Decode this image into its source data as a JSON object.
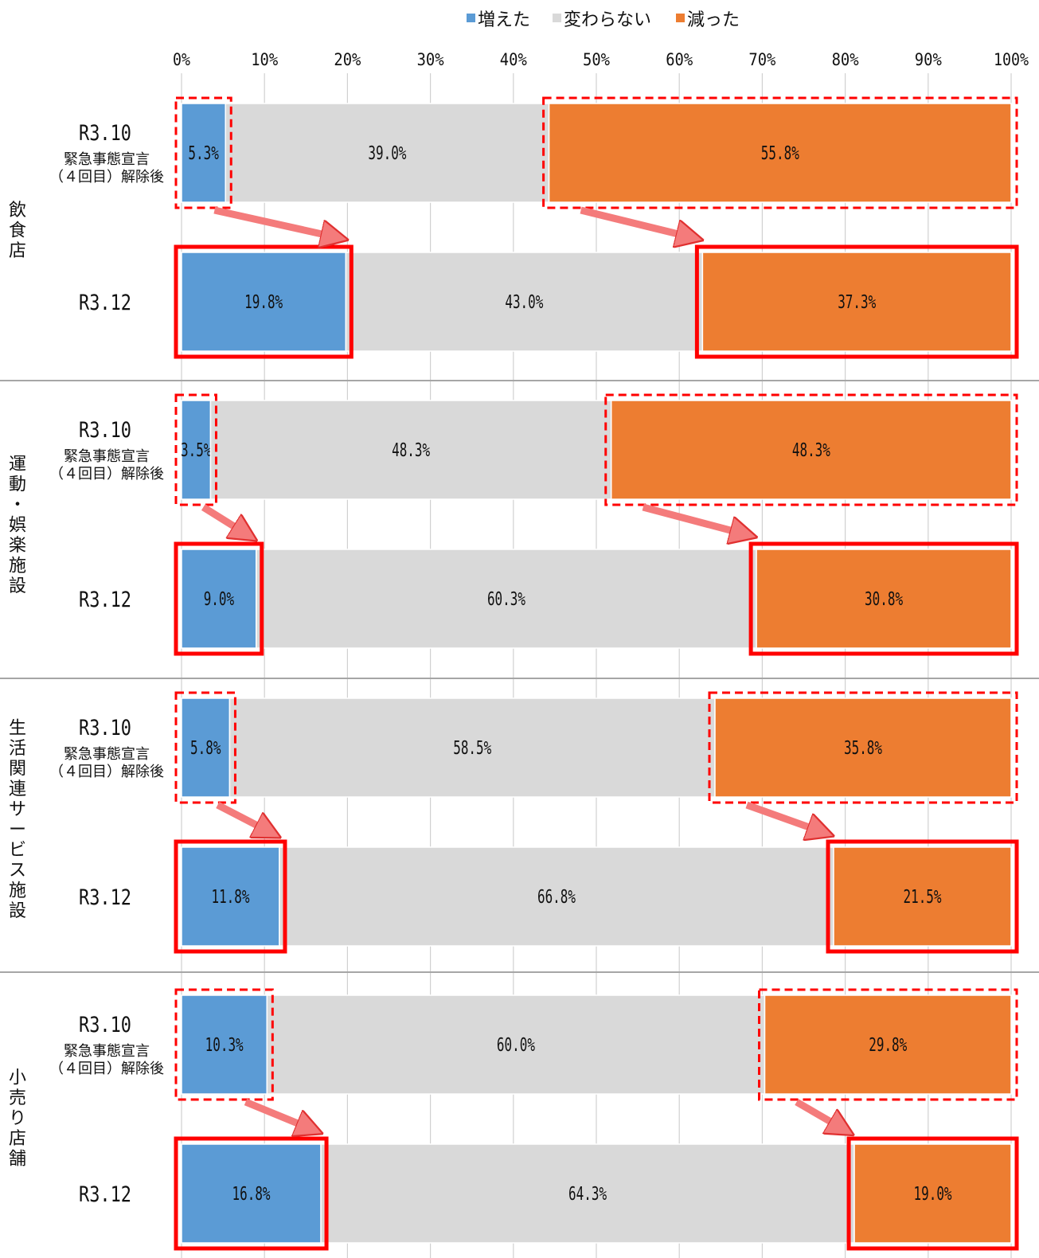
{
  "chart_data": {
    "type": "bar",
    "orientation": "horizontal",
    "stacked": "percent",
    "xlim": [
      0,
      100
    ],
    "x_ticks": [
      "0%",
      "10%",
      "20%",
      "30%",
      "40%",
      "50%",
      "60%",
      "70%",
      "80%",
      "90%",
      "100%"
    ],
    "legend": {
      "placement": "top-center",
      "items": [
        {
          "label": "増えた",
          "color": "#5b9bd5"
        },
        {
          "label": "変わらない",
          "color": "#d9d9d9"
        },
        {
          "label": "減った",
          "color": "#ed7d31"
        }
      ]
    },
    "highlight_color": "#ff0000",
    "groups": [
      {
        "name": "飲食店",
        "rows": [
          {
            "label": "R3.10",
            "sublabel": [
              "緊急事態宣言",
              "（４回目）解除後"
            ],
            "values": [
              5.3,
              39.0,
              55.8
            ],
            "value_labels": [
              "5.3%",
              "39.0%",
              "55.8%"
            ]
          },
          {
            "label": "R3.12",
            "sublabel": [],
            "values": [
              19.8,
              43.0,
              37.3
            ],
            "value_labels": [
              "19.8%",
              "43.0%",
              "37.3%"
            ]
          }
        ]
      },
      {
        "name": "運動・娯楽施設",
        "rows": [
          {
            "label": "R3.10",
            "sublabel": [
              "緊急事態宣言",
              "（４回目）解除後"
            ],
            "values": [
              3.5,
              48.3,
              48.3
            ],
            "value_labels": [
              "3.5%",
              "48.3%",
              "48.3%"
            ]
          },
          {
            "label": "R3.12",
            "sublabel": [],
            "values": [
              9.0,
              60.3,
              30.8
            ],
            "value_labels": [
              "9.0%",
              "60.3%",
              "30.8%"
            ]
          }
        ]
      },
      {
        "name": "生活関連サービス施設",
        "rows": [
          {
            "label": "R3.10",
            "sublabel": [
              "緊急事態宣言",
              "（４回目）解除後"
            ],
            "values": [
              5.8,
              58.5,
              35.8
            ],
            "value_labels": [
              "5.8%",
              "58.5%",
              "35.8%"
            ]
          },
          {
            "label": "R3.12",
            "sublabel": [],
            "values": [
              11.8,
              66.8,
              21.5
            ],
            "value_labels": [
              "11.8%",
              "66.8%",
              "21.5%"
            ]
          }
        ]
      },
      {
        "name": "小売り店舗",
        "rows": [
          {
            "label": "R3.10",
            "sublabel": [
              "緊急事態宣言",
              "（４回目）解除後"
            ],
            "values": [
              10.3,
              60.0,
              29.8
            ],
            "value_labels": [
              "10.3%",
              "60.0%",
              "29.8%"
            ]
          },
          {
            "label": "R3.12",
            "sublabel": [],
            "values": [
              16.8,
              64.3,
              19.0
            ],
            "value_labels": [
              "16.8%",
              "64.3%",
              "19.0%"
            ]
          }
        ]
      }
    ]
  }
}
